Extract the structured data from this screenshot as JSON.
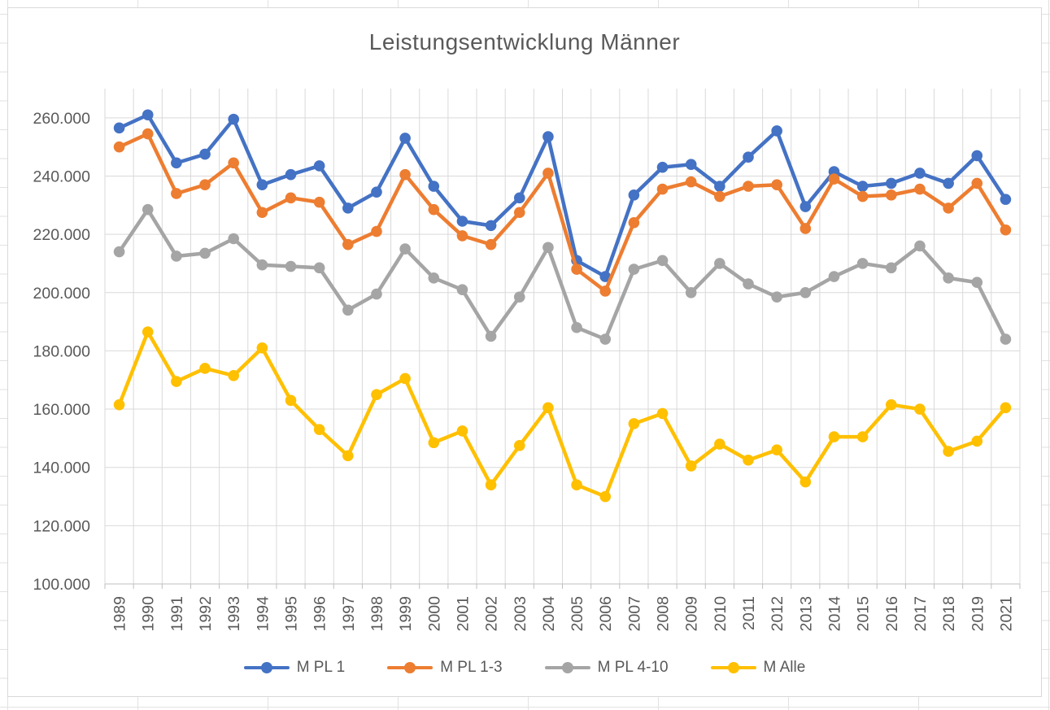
{
  "chart_data": {
    "type": "line",
    "title": "Leistungsentwicklung Männer",
    "categories": [
      "1989",
      "1990",
      "1991",
      "1992",
      "1993",
      "1994",
      "1995",
      "1996",
      "1997",
      "1998",
      "1999",
      "2000",
      "2001",
      "2002",
      "2003",
      "2004",
      "2005",
      "2006",
      "2007",
      "2008",
      "2009",
      "2010",
      "2011",
      "2012",
      "2013",
      "2014",
      "2015",
      "2016",
      "2017",
      "2018",
      "2019",
      "2021"
    ],
    "series": [
      {
        "name": "M PL 1",
        "color": "#4472C4",
        "values": [
          256500,
          261000,
          244500,
          247500,
          259500,
          237000,
          240500,
          243500,
          229000,
          234500,
          253000,
          236500,
          224500,
          223000,
          232500,
          253500,
          211000,
          205500,
          233500,
          243000,
          244000,
          236500,
          246500,
          255500,
          229500,
          241500,
          236500,
          237500,
          241000,
          237500,
          247000,
          232000
        ]
      },
      {
        "name": "M PL 1-3",
        "color": "#ED7D31",
        "values": [
          250000,
          254500,
          234000,
          237000,
          244500,
          227500,
          232500,
          231000,
          216500,
          221000,
          240500,
          228500,
          219500,
          216500,
          227500,
          241000,
          208000,
          200500,
          224000,
          235500,
          238000,
          233000,
          236500,
          237000,
          222000,
          239000,
          233000,
          233500,
          235500,
          229000,
          237500,
          221500
        ]
      },
      {
        "name": "M PL 4-10",
        "color": "#A5A5A5",
        "values": [
          214000,
          228500,
          212500,
          213500,
          218500,
          209500,
          209000,
          208500,
          194000,
          199500,
          215000,
          205000,
          201000,
          185000,
          198500,
          215500,
          188000,
          184000,
          208000,
          211000,
          200000,
          210000,
          203000,
          198500,
          200000,
          205500,
          210000,
          208500,
          216000,
          205000,
          203500,
          184000
        ]
      },
      {
        "name": "M Alle",
        "color": "#FFC000",
        "values": [
          161500,
          186500,
          169500,
          174000,
          171500,
          181000,
          163000,
          153000,
          144000,
          165000,
          170500,
          148500,
          152500,
          134000,
          147500,
          160500,
          134000,
          130000,
          155000,
          158500,
          140500,
          148000,
          142500,
          146000,
          135000,
          150500,
          150500,
          161500,
          160000,
          145500,
          149000,
          160500
        ]
      }
    ],
    "ylim": [
      100000,
      270000
    ],
    "y_major_unit": 20000,
    "y_tick_labels": [
      "100.000",
      "120.000",
      "140.000",
      "160.000",
      "180.000",
      "200.000",
      "220.000",
      "240.000",
      "260.000"
    ],
    "grid": true,
    "legend_position": "bottom"
  },
  "colors": {
    "gridline": "#d9d9d9",
    "axis_line": "#bfbfbf",
    "axis_text": "#595959",
    "title_text": "#595959"
  }
}
